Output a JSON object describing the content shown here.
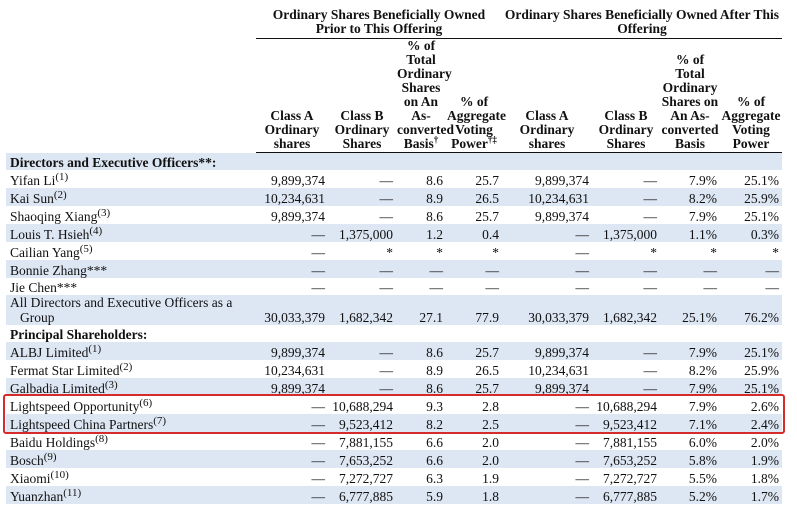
{
  "table": {
    "group_headers": [
      "Ordinary Shares Beneficially Owned Prior to This Offering",
      "Ordinary Shares Beneficially Owned After This Offering"
    ],
    "column_headers": [
      {
        "text": "Class A Ordinary shares"
      },
      {
        "text": "Class B Ordinary Shares"
      },
      {
        "text": "% of Total Ordinary Shares on An As-converted Basis",
        "note": "†"
      },
      {
        "text": "% of Aggregate Voting Power",
        "note": "†‡"
      },
      {
        "text": "Class A Ordinary shares"
      },
      {
        "text": "Class B Ordinary Shares"
      },
      {
        "text": "% of Total Ordinary Shares on An As-converted Basis"
      },
      {
        "text": "% of Aggregate Voting Power"
      }
    ],
    "sections": [
      {
        "title": "Directors and Executive Officers**:",
        "rows": [
          {
            "name": "Yifan Li",
            "note": "(1)",
            "cells": [
              "9,899,374",
              "—",
              "8.6",
              "25.7",
              "9,899,374",
              "—",
              "7.9%",
              "25.1%"
            ]
          },
          {
            "name": "Kai Sun",
            "note": "(2)",
            "cells": [
              "10,234,631",
              "—",
              "8.9",
              "26.5",
              "10,234,631",
              "—",
              "8.2%",
              "25.9%"
            ]
          },
          {
            "name": "Shaoqing Xiang",
            "note": "(3)",
            "cells": [
              "9,899,374",
              "—",
              "8.6",
              "25.7",
              "9,899,374",
              "—",
              "7.9%",
              "25.1%"
            ]
          },
          {
            "name": "Louis T. Hsieh",
            "note": "(4)",
            "cells": [
              "—",
              "1,375,000",
              "1.2",
              "0.4",
              "—",
              "1,375,000",
              "1.1%",
              "0.3%"
            ]
          },
          {
            "name": "Cailian Yang",
            "note": "(5)",
            "cells": [
              "—",
              "*",
              "*",
              "*",
              "—",
              "*",
              "*",
              "*"
            ]
          },
          {
            "name": "Bonnie Zhang***",
            "cells": [
              "—",
              "—",
              "—",
              "—",
              "—",
              "—",
              "—",
              "—"
            ]
          },
          {
            "name": "Jie Chen***",
            "cells": [
              "—",
              "—",
              "—",
              "—",
              "—",
              "—",
              "—",
              "—"
            ]
          },
          {
            "name": "All Directors and Executive Officers as a Group",
            "cells": [
              "30,033,379",
              "1,682,342",
              "27.1",
              "77.9",
              "30,033,379",
              "1,682,342",
              "25.1%",
              "76.2%"
            ]
          }
        ]
      },
      {
        "title": "Principal Shareholders:",
        "rows": [
          {
            "name": "ALBJ Limited",
            "note": "(1)",
            "cells": [
              "9,899,374",
              "—",
              "8.6",
              "25.7",
              "9,899,374",
              "—",
              "7.9%",
              "25.1%"
            ]
          },
          {
            "name": "Fermat Star Limited",
            "note": "(2)",
            "cells": [
              "10,234,631",
              "—",
              "8.9",
              "26.5",
              "10,234,631",
              "—",
              "8.2%",
              "25.9%"
            ]
          },
          {
            "name": "Galbadia Limited",
            "note": "(3)",
            "cells": [
              "9,899,374",
              "—",
              "8.6",
              "25.7",
              "9,899,374",
              "—",
              "7.9%",
              "25.1%"
            ]
          },
          {
            "name": "Lightspeed Opportunity",
            "note": "(6)",
            "highlight": true,
            "cells": [
              "—",
              "10,688,294",
              "9.3",
              "2.8",
              "—",
              "10,688,294",
              "7.9%",
              "2.6%"
            ]
          },
          {
            "name": "Lightspeed China Partners",
            "note": "(7)",
            "highlight": true,
            "cells": [
              "—",
              "9,523,412",
              "8.2",
              "2.5",
              "—",
              "9,523,412",
              "7.1%",
              "2.4%"
            ]
          },
          {
            "name": "Baidu Holdings",
            "note": "(8)",
            "cells": [
              "—",
              "7,881,155",
              "6.6",
              "2.0",
              "—",
              "7,881,155",
              "6.0%",
              "2.0%"
            ]
          },
          {
            "name": "Bosch",
            "note": "(9)",
            "cells": [
              "—",
              "7,653,252",
              "6.6",
              "2.0",
              "—",
              "7,653,252",
              "5.8%",
              "1.9%"
            ]
          },
          {
            "name": "Xiaomi",
            "note": "(10)",
            "cells": [
              "—",
              "7,272,727",
              "6.3",
              "1.9",
              "—",
              "7,272,727",
              "5.5%",
              "1.8%"
            ]
          },
          {
            "name": "Yuanzhan",
            "note": "(11)",
            "cells": [
              "—",
              "6,777,885",
              "5.9",
              "1.8",
              "—",
              "6,777,885",
              "5.2%",
              "1.7%"
            ]
          }
        ]
      }
    ]
  }
}
